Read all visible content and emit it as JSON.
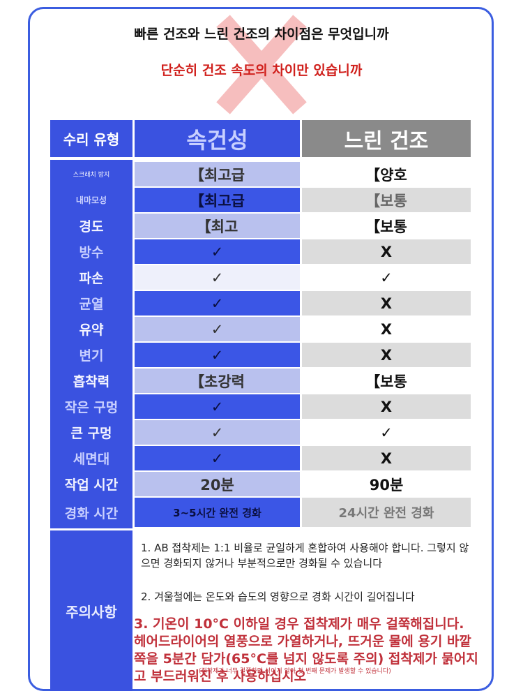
{
  "header": {
    "title": "빠른 건조와 느린 건조의 차이점은 무엇입니까",
    "subtitle": "단순히 건조 속도의 차이만 있습니까"
  },
  "table": {
    "columns": [
      "수리 유형",
      "속건성",
      "느린 건조"
    ],
    "rows": [
      [
        "스크래치 방지",
        "【최고급",
        "【양호"
      ],
      [
        "내마모성",
        "【최고급",
        "【보통"
      ],
      [
        "경도",
        "【최고",
        "【보통"
      ],
      [
        "방수",
        "✓",
        "X"
      ],
      [
        "파손",
        "✓",
        "✓"
      ],
      [
        "균열",
        "✓",
        "X"
      ],
      [
        "유약",
        "✓",
        "X"
      ],
      [
        "변기",
        "✓",
        "X"
      ],
      [
        "흡착력",
        "【초강력",
        "【보통"
      ],
      [
        "작은 구멍",
        "✓",
        "X"
      ],
      [
        "큰 구멍",
        "✓",
        "✓"
      ],
      [
        "세면대",
        "✓",
        "X"
      ],
      [
        "작업 시간",
        "20분",
        "90분"
      ],
      [
        "경화 시간",
        "3~5시간 완전 경화",
        "24시간 완전 경화"
      ]
    ]
  },
  "notes": {
    "label": "주의사항",
    "items": [
      "1. AB 접착제는 1:1 비율로 균일하게 혼합하여 사용해야 합니다. 그렇지 않으면 경화되지 않거나 부분적으로만 경화될 수 있습니다",
      "2. 겨울철에는 온도와 습도의 영향으로 경화 시간이 길어집니다",
      "3. 기온이 10°C 이하일 경우 접착제가 매우 걸쭉해집니다. 헤어드라이어의 열풍으로 가열하거나, 뜨거운 물에 용기 바깥쪽을 5분간 담가(65°C를 넘지 않도록 주의) 접착제가 묽어지고 부드러워진 후 사용하십시오"
    ],
    "footnote": "(접착제가 너무 걸쭉하면 섞이지 않아 첫 번째 문제가 발생할 수 있습니다)"
  }
}
